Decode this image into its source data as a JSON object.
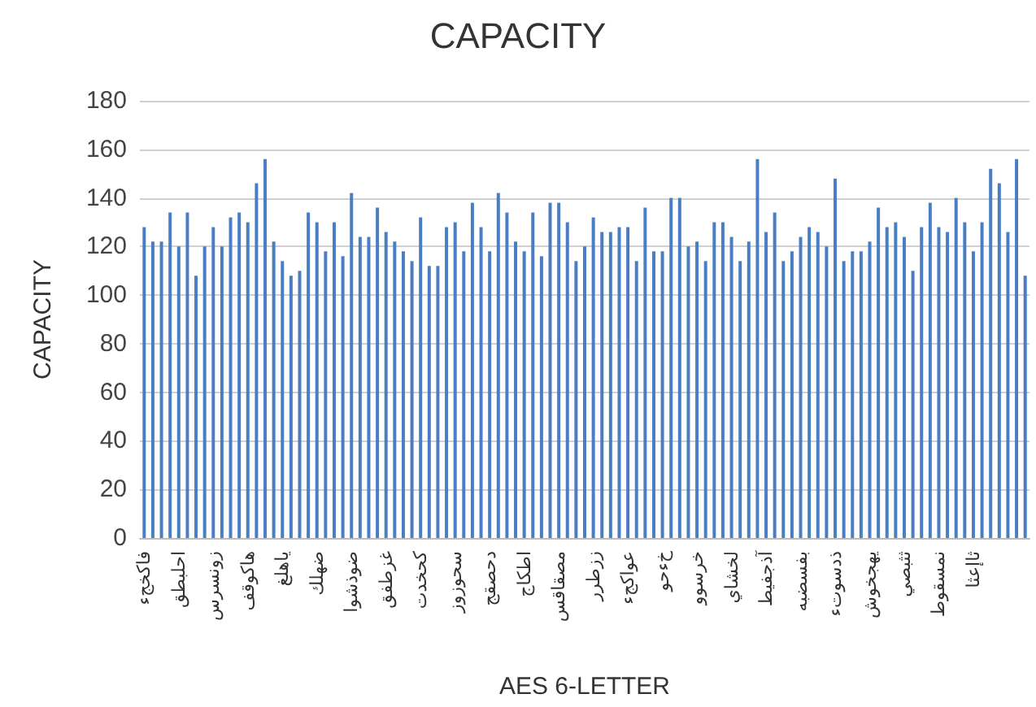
{
  "chart_data": {
    "type": "bar",
    "title": "CAPACITY",
    "xlabel": "AES 6-LETTER",
    "ylabel": "CAPACITY",
    "categories": [
      "فاكخجء",
      null,
      null,
      null,
      "احلبطق",
      null,
      null,
      null,
      "زونسرس",
      null,
      null,
      null,
      "هاكوقف",
      null,
      null,
      null,
      "ياهلغ",
      null,
      null,
      null,
      "ضهلك",
      null,
      null,
      null,
      "ضوذشوا",
      null,
      null,
      null,
      "غزطفق",
      null,
      null,
      null,
      "كحخدت",
      null,
      null,
      null,
      "سحوزوز",
      null,
      null,
      null,
      "دحصقج",
      null,
      null,
      null,
      "اطكاج",
      null,
      null,
      null,
      "مصقاقس",
      null,
      null,
      null,
      "ززطرر",
      null,
      null,
      null,
      "عواكجء",
      null,
      null,
      null,
      "خءحو",
      null,
      null,
      null,
      "خرسوو",
      null,
      null,
      null,
      "لخشاي",
      null,
      null,
      null,
      "آذجفيط",
      null,
      null,
      null,
      "بفسضبه",
      null,
      null,
      null,
      "ذدسوتء",
      null,
      null,
      null,
      "يهجخوش",
      null,
      null,
      null,
      "ثثبصي",
      null,
      null,
      null,
      "نمسقوط",
      null,
      null,
      null,
      "ثاإعثا",
      null,
      null,
      null,
      null,
      null,
      null
    ],
    "values": [
      128,
      122,
      122,
      134,
      120,
      134,
      108,
      120,
      128,
      120,
      132,
      134,
      130,
      146,
      156,
      122,
      114,
      108,
      110,
      134,
      130,
      118,
      130,
      116,
      142,
      124,
      124,
      136,
      126,
      122,
      118,
      114,
      132,
      112,
      112,
      128,
      130,
      118,
      138,
      128,
      118,
      142,
      134,
      122,
      118,
      134,
      116,
      138,
      138,
      130,
      114,
      120,
      132,
      126,
      126,
      128,
      128,
      114,
      136,
      118,
      118,
      140,
      140,
      120,
      122,
      114,
      130,
      130,
      124,
      114,
      122,
      156,
      126,
      134,
      114,
      118,
      124,
      128,
      126,
      120,
      148,
      114,
      118,
      118,
      122,
      136,
      128,
      130,
      124,
      110,
      128,
      138,
      128,
      126,
      140,
      130,
      118,
      130,
      152,
      146,
      126,
      156,
      108
    ],
    "color": "#4a7ec4",
    "ylim": [
      0,
      180
    ],
    "yticks": [
      0,
      20,
      40,
      60,
      80,
      100,
      120,
      140,
      160,
      180
    ],
    "grid": "y"
  }
}
